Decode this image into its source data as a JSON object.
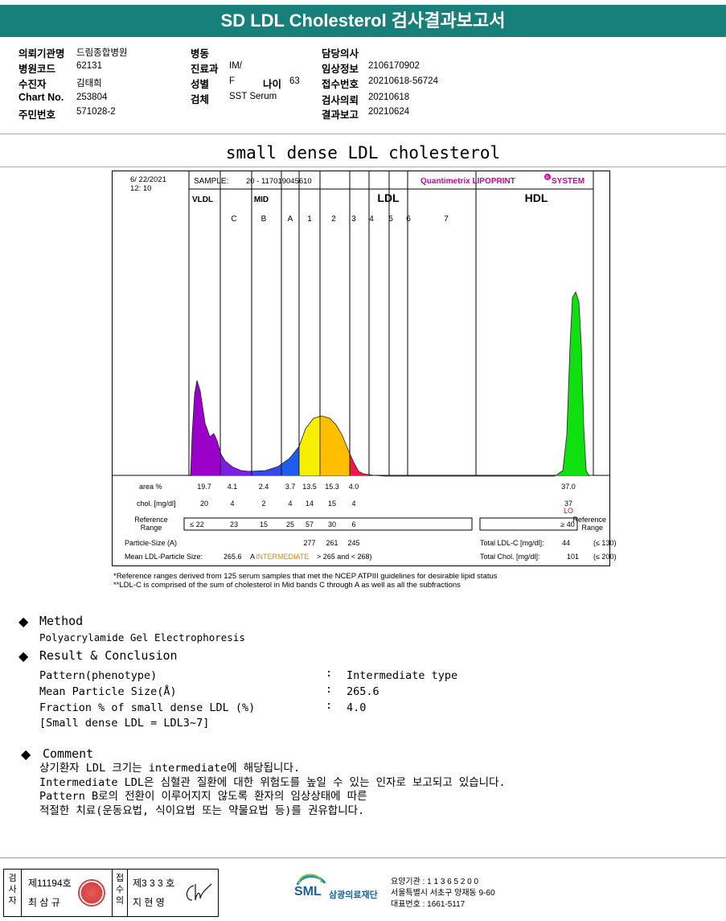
{
  "report_title": "SD LDL Cholesterol 검사결과보고서",
  "patient": {
    "col1": [
      {
        "label": "의뢰기관명",
        "value": "드림종합병원"
      },
      {
        "label": "병원코드",
        "value": "62131"
      },
      {
        "label": "수진자",
        "value": "김태희"
      },
      {
        "label": "Chart No.",
        "value": "253804"
      },
      {
        "label": "주민번호",
        "value": "571028-2"
      }
    ],
    "col2": [
      {
        "label": "병동",
        "value": ""
      },
      {
        "label": "진료과",
        "value": "IM/"
      },
      {
        "label": "성별",
        "value": "F"
      },
      {
        "label": "검체",
        "value": "SST Serum"
      }
    ],
    "age_label": "나이",
    "age_value": "63",
    "col3": [
      {
        "label": "담당의사",
        "value": ""
      },
      {
        "label": "임상정보",
        "value": "2106170902"
      },
      {
        "label": "접수번호",
        "value": "20210618-56724"
      },
      {
        "label": "검사의뢰",
        "value": "20210618"
      },
      {
        "label": "결과보고",
        "value": "20210624"
      }
    ]
  },
  "section_title": "small dense LDL cholesterol",
  "chart_data": {
    "type": "area",
    "date": "6/ 22/2021",
    "time": "12: 10",
    "sample_label": "SAMPLE:",
    "sample_value": "20 - 117019045610",
    "brand": "Quantimetrix LIPOPRINT",
    "brand_mark": "R",
    "brand_suffix": "SYSTEM",
    "groups": [
      "VLDL",
      "MID",
      "LDL",
      "HDL"
    ],
    "mid_bands": [
      "C",
      "B",
      "A"
    ],
    "ldl_bands": [
      "1",
      "2",
      "3",
      "4",
      "5",
      "6",
      "7"
    ],
    "row_labels": {
      "area": "area %",
      "chol": "chol. [mg/dl]",
      "ref": "Reference\nRange",
      "ref_right": "Reference\nRange",
      "particle": "Particle-Size (A)",
      "mean": "Mean LDL-Particle Size:"
    },
    "area_pct": [
      "19.7",
      "4.1",
      "2.4",
      "3.7",
      "13.5",
      "15.3",
      "4.0"
    ],
    "hdl_area": "37.0",
    "chol": [
      "20",
      "4",
      "2",
      "4",
      "14",
      "15",
      "4"
    ],
    "hdl_chol": "37",
    "hdl_flag": "LO",
    "ref_range": [
      "≤ 22",
      "23",
      "15",
      "25",
      "57",
      "30",
      "6"
    ],
    "hdl_ref": "≥ 40",
    "particle_sizes": [
      "277",
      "261",
      "245"
    ],
    "mean_size": "265.6",
    "mean_a": "A",
    "mean_type": "INTERMEDIATE",
    "mean_criteria": "> 265 and < 268)",
    "total_ldl_label": "Total LDL-C [mg/dl]:",
    "total_ldl_value": "44",
    "total_ldl_ref": "(≤ 130)",
    "total_chol_label": "Total Chol. [mg/dl]:",
    "total_chol_value": "101",
    "total_chol_ref": "(≤ 200)",
    "colors": {
      "vldl": "#9b00c8",
      "midC": "#7a20e0",
      "midB": "#3b48e8",
      "midA": "#1e5cf0",
      "ldl1": "#f6f000",
      "ldl2": "#ffbe00",
      "ldl3": "#f01848",
      "hdl": "#10e010"
    }
  },
  "footnotes": [
    "*Reference ranges derived from 125 serum samples that met the NCEP ATPIII guidelines for desirable lipid status",
    "**LDL-C is comprised of the sum of cholesterol in Mid bands C through A as well as all the subfractions"
  ],
  "method": {
    "title": "Method",
    "text": "Polyacrylamide Gel Electrophoresis"
  },
  "result": {
    "title": "Result & Conclusion",
    "rows": [
      {
        "label": "Pattern(phenotype)",
        "colon": ":",
        "value": "Intermediate type"
      },
      {
        "label": "Mean Particle Size(Å)",
        "colon": ":",
        "value": "265.6"
      },
      {
        "label": "Fraction % of small dense LDL (%)",
        "colon": ":",
        "value": "4.0"
      }
    ],
    "note": "[Small dense LDL = LDL3~7]"
  },
  "comment": {
    "title": "Comment",
    "lines": [
      "상기환자 LDL 크기는 intermediate에 해당됩니다.",
      "Intermediate LDL은 심혈관 질환에 대한 위험도를 높일 수 있는 인자로 보고되고 있습니다.",
      "Pattern B로의 전환이 이루어지지 않도록 환자의 임상상태에 따른",
      "적절한 치료(운동요법, 식이요법 또는 약물요법 등)를 권유합니다."
    ]
  },
  "footer": {
    "tester_label": "검사자",
    "tester_no": "제11194호",
    "tester_name": "최 삼 규",
    "approver_label": "접수의",
    "approver_no": "제3 3 3 호",
    "approver_name": "지 현 영",
    "logo_text": "SML",
    "org_name": "삼광의료재단",
    "lines": [
      "요양기관 : 1 1 3 6 5 2 0 0",
      "서울특별시 서초구 양재동 9-60",
      "대표번호 : 1661-5117"
    ]
  }
}
